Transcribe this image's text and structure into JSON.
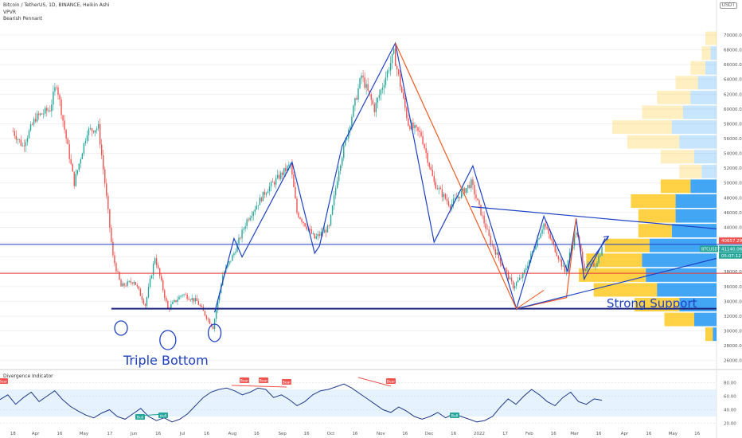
{
  "header": {
    "symbol_line": "Bitcoin / TetherUS, 1D, BINANCE, Heikin Ashi",
    "indicator_1": "VPVR",
    "indicator_2": "Bearish Pennant",
    "currency_badge": "USDT",
    "osc_title": "Divergence Indicator"
  },
  "annotations": {
    "strong_support": "Strong Support",
    "triple_bottom": "Triple Bottom",
    "bull": "Bull",
    "bear": "Bear"
  },
  "price_tags": {
    "last": "40657.29",
    "symbol": "BTCUSDT",
    "close": "41140.06",
    "countdown": "05:07:12"
  },
  "colors": {
    "bull_candle": "#26a69a",
    "bear_candle": "#ef5350",
    "trendline_blue": "#1e40c4",
    "trendline_red": "#f15a24",
    "support_line": "#1a237e",
    "red_level": "#e53935",
    "vp_up": "#2196f3",
    "vp_down": "#ffc107",
    "osc_line": "#1e3a8a",
    "osc_band": "#d6e9fb"
  },
  "chart_data": [
    {
      "type": "candlestick",
      "series_name": "BTCUSDT",
      "y_axis": {
        "ticks": [
          "70000.00",
          "68000.00",
          "66000.00",
          "64000.00",
          "62000.00",
          "60000.00",
          "58000.00",
          "56000.00",
          "54000.00",
          "52000.00",
          "50000.00",
          "48000.00",
          "46000.00",
          "44000.00",
          "42000.00",
          "40000.00",
          "38000.00",
          "36000.00",
          "34000.00",
          "32000.00",
          "30000.00",
          "28000.00",
          "26000.00"
        ],
        "range": [
          25000,
          71500
        ]
      },
      "x_axis": {
        "ticks": [
          "18",
          "Apr",
          "16",
          "May",
          "17",
          "Jun",
          "16",
          "Jul",
          "16",
          "Aug",
          "16",
          "Sep",
          "16",
          "Oct",
          "16",
          "Nov",
          "16",
          "Dec",
          "16",
          "2022",
          "17",
          "Feb",
          "16",
          "Mar",
          "16",
          "Apr",
          "16",
          "May",
          "16"
        ]
      },
      "close_path": [
        {
          "d": "2021-03-18",
          "c": 57000
        },
        {
          "d": "2021-03-24",
          "c": 55000
        },
        {
          "d": "2021-04-01",
          "c": 58800
        },
        {
          "d": "2021-04-10",
          "c": 60000
        },
        {
          "d": "2021-04-14",
          "c": 63500
        },
        {
          "d": "2021-04-20",
          "c": 56000
        },
        {
          "d": "2021-04-25",
          "c": 50000
        },
        {
          "d": "2021-05-03",
          "c": 57000
        },
        {
          "d": "2021-05-10",
          "c": 57500
        },
        {
          "d": "2021-05-14",
          "c": 50000
        },
        {
          "d": "2021-05-19",
          "c": 40000
        },
        {
          "d": "2021-05-24",
          "c": 36000
        },
        {
          "d": "2021-06-01",
          "c": 36800
        },
        {
          "d": "2021-06-08",
          "c": 33500
        },
        {
          "d": "2021-06-14",
          "c": 40000
        },
        {
          "d": "2021-06-22",
          "c": 33000
        },
        {
          "d": "2021-07-01",
          "c": 35000
        },
        {
          "d": "2021-07-10",
          "c": 34000
        },
        {
          "d": "2021-07-20",
          "c": 30500
        },
        {
          "d": "2021-07-26",
          "c": 37500
        },
        {
          "d": "2021-08-02",
          "c": 40500
        },
        {
          "d": "2021-08-10",
          "c": 45000
        },
        {
          "d": "2021-08-22",
          "c": 49000
        },
        {
          "d": "2021-09-06",
          "c": 52500
        },
        {
          "d": "2021-09-10",
          "c": 46000
        },
        {
          "d": "2021-09-21",
          "c": 42500
        },
        {
          "d": "2021-09-30",
          "c": 44000
        },
        {
          "d": "2021-10-06",
          "c": 52000
        },
        {
          "d": "2021-10-15",
          "c": 60000
        },
        {
          "d": "2021-10-20",
          "c": 64500
        },
        {
          "d": "2021-10-28",
          "c": 60000
        },
        {
          "d": "2021-11-09",
          "c": 67500
        },
        {
          "d": "2021-11-18",
          "c": 58000
        },
        {
          "d": "2021-11-26",
          "c": 56500
        },
        {
          "d": "2021-12-04",
          "c": 50000
        },
        {
          "d": "2021-12-14",
          "c": 47000
        },
        {
          "d": "2021-12-27",
          "c": 50000
        },
        {
          "d": "2022-01-08",
          "c": 42000
        },
        {
          "d": "2022-01-22",
          "c": 36000
        },
        {
          "d": "2022-01-28",
          "c": 37500
        },
        {
          "d": "2022-02-10",
          "c": 44500
        },
        {
          "d": "2022-02-23",
          "c": 38000
        },
        {
          "d": "2022-03-02",
          "c": 43500
        },
        {
          "d": "2022-03-07",
          "c": 38500
        },
        {
          "d": "2022-03-14",
          "c": 39000
        },
        {
          "d": "2022-03-18",
          "c": 41100
        }
      ],
      "horizontal_levels": {
        "blue": 41700,
        "red": 37800,
        "support": 33000
      }
    },
    {
      "type": "line",
      "series_name": "Divergence Indicator",
      "y_axis": {
        "ticks": [
          "80.00",
          "60.00",
          "40.00",
          "20.00"
        ],
        "range": [
          10,
          90
        ],
        "band": [
          30,
          70
        ]
      },
      "values": [
        55,
        62,
        48,
        58,
        66,
        52,
        60,
        68,
        55,
        45,
        38,
        32,
        28,
        35,
        40,
        30,
        26,
        34,
        42,
        30,
        24,
        28,
        22,
        26,
        34,
        46,
        58,
        66,
        70,
        72,
        68,
        62,
        66,
        72,
        70,
        58,
        62,
        55,
        46,
        52,
        62,
        68,
        70,
        74,
        78,
        72,
        64,
        56,
        48,
        40,
        36,
        44,
        38,
        30,
        26,
        30,
        36,
        28,
        34,
        30,
        26,
        22,
        24,
        30,
        44,
        56,
        48,
        60,
        70,
        62,
        52,
        46,
        58,
        66,
        52,
        48,
        56,
        54
      ]
    }
  ]
}
